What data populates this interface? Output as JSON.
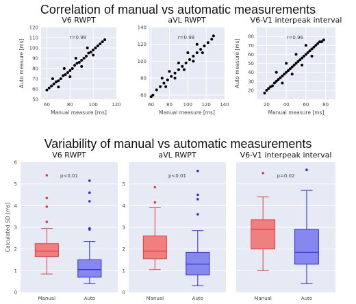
{
  "headings": {
    "correlation": "Correlation of manual vs automatic measurements",
    "variability": "Variability of manual vs automatic measurements"
  },
  "colors": {
    "plot_bg": "#e6eaf4",
    "grid": "#ffffff",
    "scatter": "#000000",
    "manual_fill": "#f08080",
    "manual_stroke": "#e23b3b",
    "auto_fill": "#8787f0",
    "auto_stroke": "#2b2bd6"
  },
  "chart_data": [
    {
      "type": "scatter",
      "title": "V6 RWPT",
      "xlabel": "Manual measure [ms]",
      "ylabel": "Auto measure [ms]",
      "annotation": "r=0.98",
      "xlim": [
        55,
        120
      ],
      "ylim": [
        50,
        120
      ],
      "xticks": [
        60,
        80,
        100,
        120
      ],
      "yticks": [
        50,
        60,
        70,
        80,
        90,
        100,
        110,
        120
      ],
      "points": [
        [
          60,
          59
        ],
        [
          62,
          61
        ],
        [
          64,
          63
        ],
        [
          66,
          65
        ],
        [
          68,
          67
        ],
        [
          70,
          68
        ],
        [
          72,
          70
        ],
        [
          74,
          73
        ],
        [
          76,
          74
        ],
        [
          78,
          76
        ],
        [
          80,
          78
        ],
        [
          82,
          80
        ],
        [
          84,
          83
        ],
        [
          86,
          85
        ],
        [
          88,
          86
        ],
        [
          90,
          88
        ],
        [
          92,
          90
        ],
        [
          94,
          92
        ],
        [
          96,
          95
        ],
        [
          98,
          96
        ],
        [
          100,
          98
        ],
        [
          102,
          100
        ],
        [
          104,
          102
        ],
        [
          106,
          104
        ],
        [
          108,
          106
        ],
        [
          110,
          108
        ],
        [
          65,
          70
        ],
        [
          75,
          80
        ],
        [
          85,
          90
        ],
        [
          95,
          100
        ],
        [
          70,
          62
        ],
        [
          80,
          72
        ],
        [
          90,
          82
        ],
        [
          100,
          93
        ]
      ]
    },
    {
      "type": "scatter",
      "title": "aVL RWPT",
      "xlabel": "Manual measure [ms]",
      "ylabel": "",
      "annotation": "r=0.98",
      "xlim": [
        58,
        140
      ],
      "ylim": [
        55,
        140
      ],
      "xticks": [
        60,
        80,
        100,
        120,
        140
      ],
      "yticks": [
        60,
        80,
        100,
        120,
        140
      ],
      "points": [
        [
          60,
          58
        ],
        [
          62,
          60
        ],
        [
          66,
          66
        ],
        [
          70,
          70
        ],
        [
          74,
          74
        ],
        [
          78,
          78
        ],
        [
          82,
          82
        ],
        [
          86,
          86
        ],
        [
          90,
          90
        ],
        [
          94,
          94
        ],
        [
          98,
          98
        ],
        [
          102,
          102
        ],
        [
          106,
          106
        ],
        [
          110,
          110
        ],
        [
          114,
          114
        ],
        [
          118,
          118
        ],
        [
          122,
          122
        ],
        [
          126,
          126
        ],
        [
          128,
          130
        ],
        [
          72,
          80
        ],
        [
          80,
          88
        ],
        [
          90,
          98
        ],
        [
          100,
          110
        ],
        [
          110,
          120
        ],
        [
          76,
          70
        ],
        [
          86,
          80
        ],
        [
          96,
          90
        ],
        [
          106,
          100
        ],
        [
          116,
          110
        ]
      ]
    },
    {
      "type": "scatter",
      "title": "V6-V1 interpeak interval",
      "xlabel": "Manual measure [ms]",
      "ylabel": "Auto measure [ms]",
      "annotation": "r=0.96",
      "xlim": [
        10,
        90
      ],
      "ylim": [
        10,
        90
      ],
      "xticks": [
        20,
        40,
        60,
        80
      ],
      "yticks": [
        20,
        30,
        40,
        50,
        60,
        70,
        80
      ],
      "points": [
        [
          18,
          17
        ],
        [
          20,
          20
        ],
        [
          22,
          22
        ],
        [
          24,
          24
        ],
        [
          26,
          25
        ],
        [
          28,
          28
        ],
        [
          30,
          30
        ],
        [
          32,
          32
        ],
        [
          34,
          34
        ],
        [
          36,
          36
        ],
        [
          38,
          38
        ],
        [
          40,
          40
        ],
        [
          42,
          42
        ],
        [
          44,
          44
        ],
        [
          46,
          46
        ],
        [
          48,
          48
        ],
        [
          50,
          50
        ],
        [
          52,
          52
        ],
        [
          54,
          54
        ],
        [
          56,
          56
        ],
        [
          58,
          58
        ],
        [
          60,
          60
        ],
        [
          62,
          62
        ],
        [
          64,
          64
        ],
        [
          66,
          66
        ],
        [
          68,
          68
        ],
        [
          70,
          70
        ],
        [
          72,
          72
        ],
        [
          74,
          74
        ],
        [
          76,
          74
        ],
        [
          78,
          76
        ],
        [
          30,
          40
        ],
        [
          40,
          50
        ],
        [
          50,
          60
        ],
        [
          60,
          70
        ],
        [
          36,
          28
        ],
        [
          46,
          38
        ],
        [
          56,
          48
        ],
        [
          66,
          58
        ]
      ]
    },
    {
      "type": "box",
      "title": "V6 RWPT",
      "ylabel": "Calculated SD [ms]",
      "annotation": "p<0.01",
      "categories": [
        "Manual",
        "Auto"
      ],
      "ylim": [
        0,
        6
      ],
      "yticks": [
        0,
        1,
        2,
        3,
        4,
        5,
        6
      ],
      "boxes": [
        {
          "name": "Manual",
          "whisker_low": 0.85,
          "q1": 1.65,
          "median": 1.9,
          "q3": 2.25,
          "whisker_high": 2.95,
          "outliers": [
            3.25,
            3.95,
            4.35,
            5.4
          ]
        },
        {
          "name": "Auto",
          "whisker_low": 0.4,
          "q1": 0.7,
          "median": 1.05,
          "q3": 1.5,
          "whisker_high": 2.35,
          "outliers": [
            2.9,
            2.95,
            4.2,
            4.6,
            5.15
          ]
        }
      ]
    },
    {
      "type": "box",
      "title": "aVL RWPT",
      "ylabel": "",
      "annotation": "p<0.01",
      "categories": [
        "Manual",
        "Auto"
      ],
      "ylim": [
        0,
        6
      ],
      "yticks": [
        0,
        1,
        2,
        3,
        4,
        5
      ],
      "boxes": [
        {
          "name": "Manual",
          "whisker_low": 1.05,
          "q1": 1.55,
          "median": 1.9,
          "q3": 2.6,
          "whisker_high": 3.9,
          "outliers": [
            4.15,
            4.85
          ]
        },
        {
          "name": "Auto",
          "whisker_low": 0.3,
          "q1": 0.8,
          "median": 1.3,
          "q3": 1.85,
          "whisker_high": 2.85,
          "outliers": [
            3.6,
            4.3,
            4.5,
            5.6
          ]
        }
      ]
    },
    {
      "type": "box",
      "title": "V6-V1 interpeak interval",
      "ylabel": "",
      "annotation": "p=0.02",
      "categories": [
        "Manual",
        "Auto"
      ],
      "ylim": [
        0,
        6
      ],
      "yticks": [],
      "boxes": [
        {
          "name": "Manual",
          "whisker_low": 1.0,
          "q1": 2.0,
          "median": 2.9,
          "q3": 3.35,
          "whisker_high": 4.4,
          "outliers": [
            5.5
          ]
        },
        {
          "name": "Auto",
          "whisker_low": 0.4,
          "q1": 1.3,
          "median": 1.85,
          "q3": 2.9,
          "whisker_high": 4.7,
          "outliers": [
            5.65
          ]
        }
      ]
    }
  ]
}
